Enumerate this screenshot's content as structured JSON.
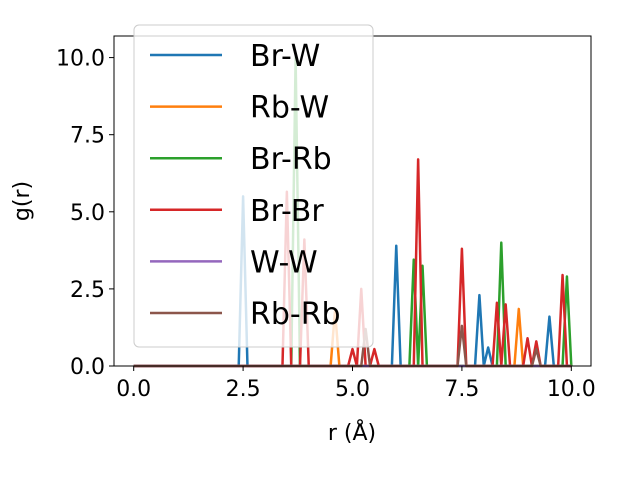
{
  "chart_data": {
    "type": "line",
    "xlabel": "r (Å)",
    "ylabel": "g(r)",
    "xlim": [
      -0.45,
      10.45
    ],
    "ylim": [
      0,
      10.7
    ],
    "xticks": [
      0.0,
      2.5,
      5.0,
      7.5,
      10.0
    ],
    "xtick_labels": [
      "0.0",
      "2.5",
      "5.0",
      "7.5",
      "10.0"
    ],
    "yticks": [
      0.0,
      2.5,
      5.0,
      7.5,
      10.0
    ],
    "ytick_labels": [
      "0.0",
      "2.5",
      "5.0",
      "7.5",
      "10.0"
    ],
    "grid": false,
    "legend_position": "top-left",
    "series": [
      {
        "name": "Br-W",
        "color": "#1f77b4",
        "points": [
          [
            0,
            0
          ],
          [
            2.4,
            0
          ],
          [
            2.5,
            5.5
          ],
          [
            2.6,
            0
          ],
          [
            5.9,
            0
          ],
          [
            6.0,
            3.9
          ],
          [
            6.1,
            0
          ],
          [
            7.8,
            0
          ],
          [
            7.9,
            2.3
          ],
          [
            8.0,
            0
          ],
          [
            8.1,
            0.6
          ],
          [
            8.2,
            0
          ],
          [
            9.4,
            0
          ],
          [
            9.5,
            1.6
          ],
          [
            9.6,
            0
          ],
          [
            10,
            0
          ]
        ]
      },
      {
        "name": "Rb-W",
        "color": "#ff7f0e",
        "points": [
          [
            0,
            0
          ],
          [
            4.5,
            0
          ],
          [
            4.6,
            1.8
          ],
          [
            4.7,
            0
          ],
          [
            8.7,
            0
          ],
          [
            8.8,
            1.85
          ],
          [
            8.9,
            0
          ],
          [
            10,
            0
          ]
        ]
      },
      {
        "name": "Br-Rb",
        "color": "#2ca02c",
        "points": [
          [
            0,
            0
          ],
          [
            3.6,
            0
          ],
          [
            3.7,
            10.0
          ],
          [
            3.8,
            0
          ],
          [
            6.3,
            0
          ],
          [
            6.4,
            3.45
          ],
          [
            6.5,
            0
          ],
          [
            6.6,
            3.25
          ],
          [
            6.7,
            0
          ],
          [
            8.3,
            0
          ],
          [
            8.4,
            4.0
          ],
          [
            8.5,
            0
          ],
          [
            9.8,
            0
          ],
          [
            9.9,
            2.9
          ],
          [
            10,
            0
          ]
        ]
      },
      {
        "name": "Br-Br",
        "color": "#d62728",
        "points": [
          [
            0,
            0
          ],
          [
            3.4,
            0
          ],
          [
            3.5,
            5.65
          ],
          [
            3.6,
            0
          ],
          [
            3.8,
            0
          ],
          [
            3.9,
            4.1
          ],
          [
            4.0,
            0
          ],
          [
            4.9,
            0
          ],
          [
            5.0,
            0.55
          ],
          [
            5.1,
            0
          ],
          [
            5.2,
            2.5
          ],
          [
            5.3,
            0
          ],
          [
            5.4,
            0
          ],
          [
            5.5,
            0.55
          ],
          [
            5.6,
            0
          ],
          [
            6.4,
            0
          ],
          [
            6.5,
            6.7
          ],
          [
            6.6,
            0
          ],
          [
            7.4,
            0
          ],
          [
            7.5,
            3.8
          ],
          [
            7.6,
            0
          ],
          [
            8.2,
            0
          ],
          [
            8.3,
            2.05
          ],
          [
            8.4,
            0
          ],
          [
            8.5,
            2.0
          ],
          [
            8.6,
            0
          ],
          [
            8.9,
            0
          ],
          [
            9.0,
            0.9
          ],
          [
            9.1,
            0
          ],
          [
            9.2,
            0.8
          ],
          [
            9.3,
            0
          ],
          [
            9.7,
            0
          ],
          [
            9.8,
            2.95
          ],
          [
            9.9,
            0
          ],
          [
            10,
            0
          ]
        ]
      },
      {
        "name": "W-W",
        "color": "#9467bd",
        "points": [
          [
            0,
            0
          ],
          [
            10,
            0
          ]
        ]
      },
      {
        "name": "Rb-Rb",
        "color": "#8c564b",
        "points": [
          [
            0,
            0
          ],
          [
            5.2,
            0
          ],
          [
            5.3,
            1.2
          ],
          [
            5.4,
            0
          ],
          [
            7.4,
            0
          ],
          [
            7.5,
            1.3
          ],
          [
            7.6,
            0
          ],
          [
            9.1,
            0
          ],
          [
            9.2,
            0.55
          ],
          [
            9.3,
            0
          ],
          [
            10,
            0
          ]
        ]
      }
    ]
  }
}
